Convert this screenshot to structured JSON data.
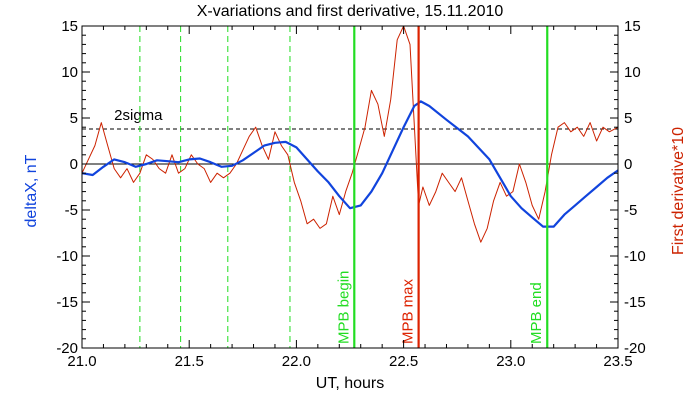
{
  "chart_data": {
    "type": "line",
    "title": "X-variations and first derivative, 15.11.2010",
    "xlabel": "UT, hours",
    "ylabel_left": "deltaX, nT",
    "ylabel_right": "First derivative*10",
    "xlim": [
      21.0,
      23.5
    ],
    "ylim": [
      -20,
      15
    ],
    "x_ticks": [
      21.0,
      21.5,
      22.0,
      22.5,
      23.0,
      23.5
    ],
    "x_tick_labels": [
      "21.0",
      "21.5",
      "22.0",
      "22.5",
      "23.0",
      "23.5"
    ],
    "y_ticks": [
      15,
      10,
      5,
      0,
      -5,
      -10,
      -15,
      -20
    ],
    "y_tick_labels": [
      "15",
      "10",
      "5",
      "0",
      "-5",
      "-10",
      "-15",
      "-20"
    ],
    "threshold": {
      "value": 3.8,
      "label": "2sigma"
    },
    "dashed_green_x": [
      21.27,
      21.46,
      21.68,
      21.97
    ],
    "markers": [
      {
        "x": 22.27,
        "label": "MPB begin",
        "color": "#22dd22"
      },
      {
        "x": 22.57,
        "label": "MPB max",
        "color": "#dd2200"
      },
      {
        "x": 23.17,
        "label": "MPB end",
        "color": "#22dd22"
      }
    ],
    "series": [
      {
        "name": "deltaX",
        "color": "#1144dd",
        "x": [
          21.0,
          21.05,
          21.1,
          21.15,
          21.2,
          21.25,
          21.3,
          21.35,
          21.4,
          21.45,
          21.5,
          21.55,
          21.6,
          21.65,
          21.7,
          21.75,
          21.8,
          21.85,
          21.9,
          21.95,
          22.0,
          22.05,
          22.1,
          22.15,
          22.2,
          22.25,
          22.3,
          22.35,
          22.4,
          22.45,
          22.5,
          22.55,
          22.58,
          22.62,
          22.7,
          22.8,
          22.9,
          23.0,
          23.05,
          23.1,
          23.15,
          23.2,
          23.25,
          23.3,
          23.35,
          23.4,
          23.45,
          23.5
        ],
        "y": [
          -1.0,
          -1.2,
          -0.3,
          0.5,
          0.2,
          -0.3,
          0.0,
          0.4,
          0.3,
          0.2,
          0.5,
          0.6,
          0.2,
          -0.3,
          -0.2,
          0.4,
          1.2,
          2.0,
          2.3,
          2.4,
          1.8,
          0.5,
          -0.8,
          -2.0,
          -3.5,
          -4.8,
          -4.5,
          -3.0,
          -1.0,
          1.5,
          4.0,
          6.3,
          6.8,
          6.3,
          4.8,
          3.0,
          0.5,
          -3.5,
          -4.8,
          -5.8,
          -6.8,
          -6.8,
          -5.5,
          -4.5,
          -3.5,
          -2.5,
          -1.5,
          -0.7
        ]
      },
      {
        "name": "First derivative*10",
        "color": "#cc2200",
        "x": [
          21.0,
          21.03,
          21.06,
          21.09,
          21.12,
          21.15,
          21.18,
          21.21,
          21.24,
          21.27,
          21.3,
          21.33,
          21.36,
          21.39,
          21.42,
          21.45,
          21.48,
          21.51,
          21.54,
          21.57,
          21.6,
          21.63,
          21.66,
          21.69,
          21.72,
          21.75,
          21.78,
          21.81,
          21.84,
          21.87,
          21.9,
          21.93,
          21.96,
          21.99,
          22.02,
          22.05,
          22.08,
          22.11,
          22.14,
          22.17,
          22.2,
          22.23,
          22.26,
          22.29,
          22.32,
          22.35,
          22.38,
          22.41,
          22.44,
          22.47,
          22.5,
          22.53,
          22.555,
          22.57,
          22.59,
          22.62,
          22.65,
          22.68,
          22.71,
          22.74,
          22.77,
          22.8,
          22.83,
          22.86,
          22.89,
          22.92,
          22.95,
          22.98,
          23.01,
          23.04,
          23.07,
          23.1,
          23.13,
          23.16,
          23.19,
          23.22,
          23.25,
          23.28,
          23.31,
          23.34,
          23.37,
          23.4,
          23.43,
          23.46,
          23.5
        ],
        "y": [
          -1.0,
          0.5,
          2.0,
          4.5,
          2.0,
          -0.5,
          -1.5,
          -0.5,
          -2.0,
          -1.0,
          1.0,
          0.5,
          -0.5,
          -1.0,
          1.0,
          -1.0,
          -0.5,
          1.0,
          0.0,
          -0.5,
          -2.0,
          -1.0,
          -1.5,
          -1.0,
          0.0,
          1.5,
          3.0,
          4.0,
          2.0,
          0.5,
          3.5,
          2.0,
          1.0,
          -2.0,
          -4.0,
          -6.5,
          -6.0,
          -7.0,
          -6.5,
          -3.5,
          -5.5,
          -3.0,
          -1.0,
          1.5,
          4.0,
          8.0,
          6.5,
          3.0,
          7.0,
          13.5,
          15.0,
          13.0,
          2.0,
          -4.5,
          -2.5,
          -4.5,
          -3.0,
          -1.0,
          -2.0,
          -3.0,
          -1.5,
          -4.0,
          -6.5,
          -8.5,
          -7.0,
          -4.0,
          -2.0,
          -3.5,
          -3.0,
          0.0,
          -2.0,
          -4.5,
          -6.0,
          -3.0,
          1.0,
          4.0,
          4.5,
          3.5,
          4.0,
          3.0,
          4.5,
          2.5,
          4.0,
          3.5,
          4.0
        ]
      }
    ]
  }
}
